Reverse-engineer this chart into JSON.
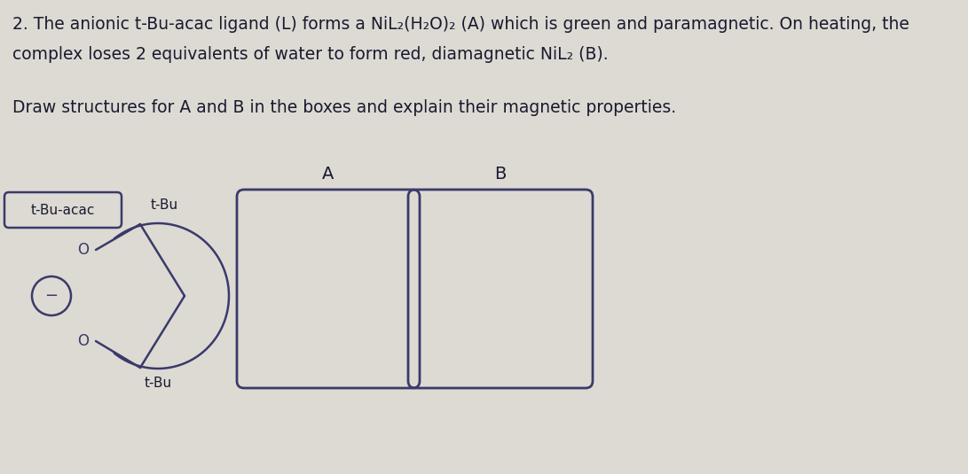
{
  "background_color": "#dddad4",
  "title_line1": "2. The anionic t-Bu-acac ligand (L) forms a NiL₂(H₂O)₂ (A) which is green and paramagnetic. On heating, the",
  "title_line2": "complex loses 2 equivalents of water to form red, diamagnetic NiL₂ (B).",
  "subtitle": "Draw structures for A and B in the boxes and explain their magnetic properties.",
  "box_A_label": "A",
  "box_B_label": "B",
  "text_color": "#1a1a2e",
  "box_color": "#3a3a6a",
  "ligand_color": "#3a3a6a",
  "figsize": [
    10.91,
    5.35
  ],
  "dpi": 100,
  "title_fontsize": 13.5,
  "subtitle_fontsize": 13.5
}
